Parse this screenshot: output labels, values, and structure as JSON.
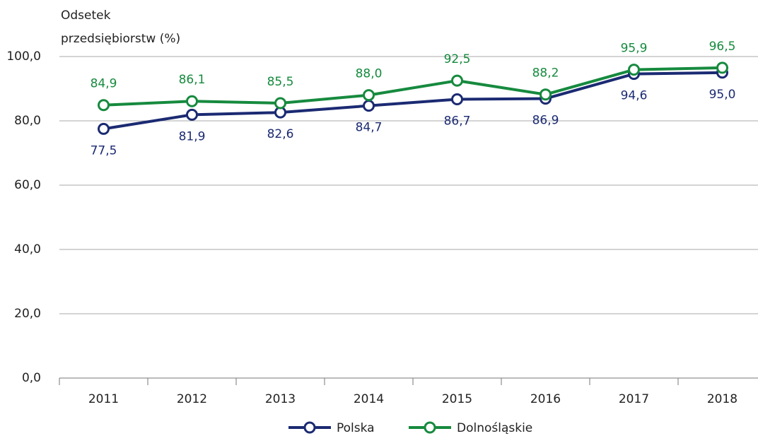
{
  "chart_data": {
    "type": "line",
    "ylabel": [
      "Odsetek",
      "przedsiębiorstw (%)"
    ],
    "categories": [
      "2011",
      "2012",
      "2013",
      "2014",
      "2015",
      "2016",
      "2017",
      "2018"
    ],
    "series": [
      {
        "name": "Polska",
        "color": "#1b2a72",
        "values": [
          77.5,
          81.9,
          82.6,
          84.7,
          86.7,
          86.9,
          94.6,
          95.0
        ],
        "value_labels": [
          "77,5",
          "81,9",
          "82,6",
          "84,7",
          "86,7",
          "86,9",
          "94,6",
          "95,0"
        ]
      },
      {
        "name": "Dolnośląskie",
        "color": "#168a3e",
        "values": [
          84.9,
          86.1,
          85.5,
          88.0,
          92.5,
          88.2,
          95.9,
          96.5
        ],
        "value_labels": [
          "84,9",
          "86,1",
          "85,5",
          "88,0",
          "92,5",
          "88,2",
          "95,9",
          "96,5"
        ]
      }
    ],
    "ylim": [
      0,
      100
    ],
    "yticks": [
      {
        "value": 0,
        "label": "0,0"
      },
      {
        "value": 20,
        "label": "20,0"
      },
      {
        "value": 40,
        "label": "40,0"
      },
      {
        "value": 60,
        "label": "60,0"
      },
      {
        "value": 80,
        "label": "80,0"
      },
      {
        "value": 100,
        "label": "100,0"
      }
    ],
    "grid": true,
    "legend": "bottom"
  }
}
